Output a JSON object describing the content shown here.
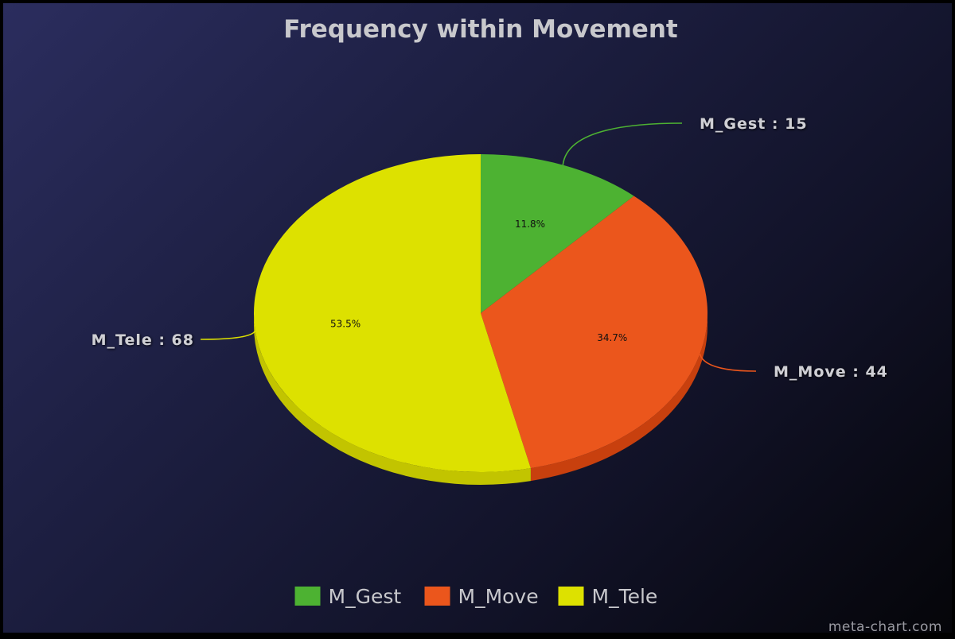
{
  "chart_data": {
    "type": "pie",
    "title": "Frequency within Movement",
    "slices": [
      {
        "label": "M_Gest",
        "value": 15,
        "percent": "11.8%",
        "color": "#4db232",
        "side_color": "#3a8c24"
      },
      {
        "label": "M_Move",
        "value": 44,
        "percent": "34.7%",
        "color": "#eb561c",
        "side_color": "#c8400e"
      },
      {
        "label": "M_Tele",
        "value": 68,
        "percent": "53.5%",
        "color": "#dde100",
        "side_color": "#c2c400"
      }
    ],
    "callout_separator": " : ",
    "legend_position": "bottom",
    "background_colors": [
      "#2b2d5e",
      "#050509"
    ]
  },
  "watermark": "meta-chart.com"
}
